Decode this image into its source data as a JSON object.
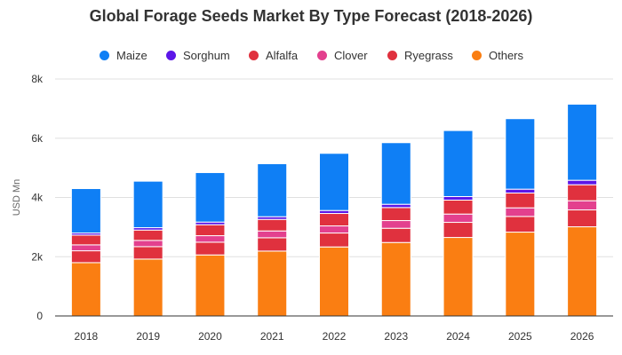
{
  "chart_data": {
    "type": "bar",
    "stacked": true,
    "title": "Global Forage Seeds Market By Type Forecast (2018-2026)",
    "xlabel": "",
    "ylabel": "USD Mn",
    "ylim": [
      0,
      8000
    ],
    "yticks": [
      {
        "value": 0,
        "label": "0"
      },
      {
        "value": 2000,
        "label": "2k"
      },
      {
        "value": 4000,
        "label": "4k"
      },
      {
        "value": 6000,
        "label": "6k"
      },
      {
        "value": 8000,
        "label": "8k"
      }
    ],
    "grid": true,
    "legend_position": "top",
    "categories": [
      "2018",
      "2019",
      "2020",
      "2021",
      "2022",
      "2023",
      "2024",
      "2025",
      "2026"
    ],
    "series": [
      {
        "name": "Others",
        "color": "#fa7e12",
        "values": [
          1800,
          1920,
          2060,
          2190,
          2330,
          2480,
          2650,
          2830,
          3010
        ]
      },
      {
        "name": "Ryegrass",
        "color": "#e0313e",
        "values": [
          400,
          420,
          430,
          450,
          470,
          480,
          510,
          530,
          570
        ]
      },
      {
        "name": "Clover",
        "color": "#e3408e",
        "values": [
          200,
          210,
          220,
          230,
          240,
          260,
          280,
          290,
          310
        ]
      },
      {
        "name": "Alfalfa",
        "color": "#e0313e",
        "values": [
          330,
          350,
          370,
          390,
          420,
          440,
          470,
          500,
          540
        ]
      },
      {
        "name": "Sorghum",
        "color": "#5c16e8",
        "values": [
          70,
          80,
          90,
          90,
          100,
          110,
          120,
          130,
          150
        ]
      },
      {
        "name": "Maize",
        "color": "#0f7ff5",
        "values": [
          1500,
          1570,
          1670,
          1790,
          1930,
          2080,
          2230,
          2380,
          2570
        ]
      }
    ],
    "legend": [
      {
        "name": "Maize",
        "color": "#0f7ff5"
      },
      {
        "name": "Sorghum",
        "color": "#5c16e8"
      },
      {
        "name": "Alfalfa",
        "color": "#e0313e"
      },
      {
        "name": "Clover",
        "color": "#e3408e"
      },
      {
        "name": "Ryegrass",
        "color": "#e0313e"
      },
      {
        "name": "Others",
        "color": "#fa7e12"
      }
    ]
  }
}
